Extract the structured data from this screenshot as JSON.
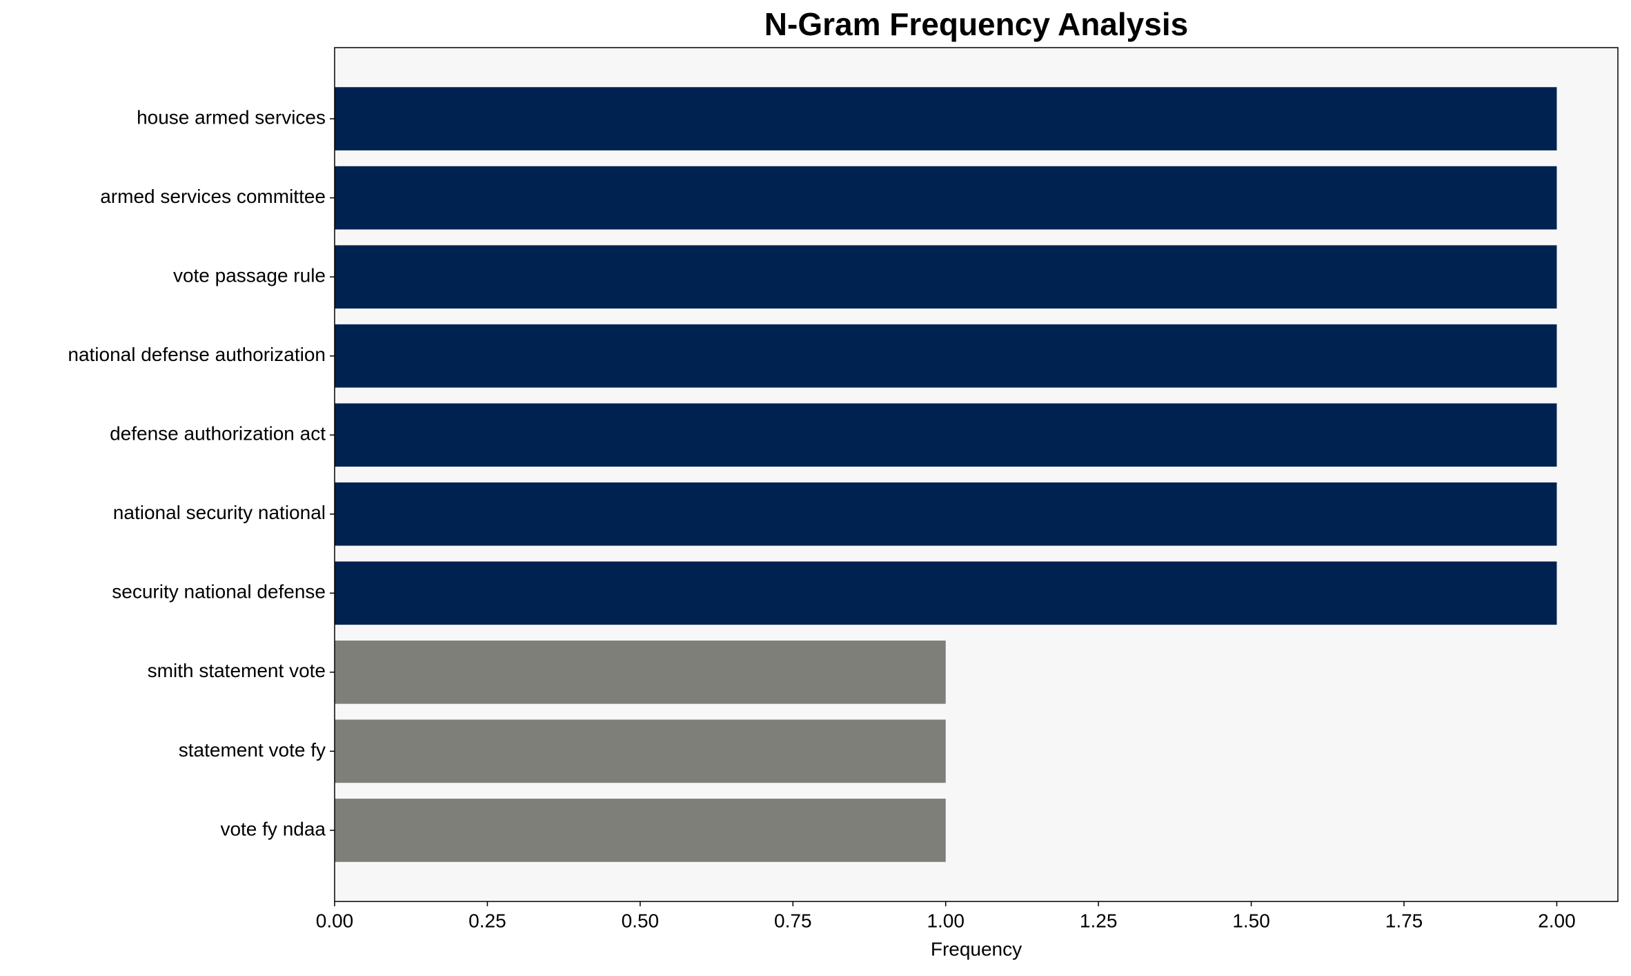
{
  "chart_data": {
    "type": "barh",
    "title": "N-Gram Frequency Analysis",
    "x_label": "Frequency",
    "categories": [
      "house armed services",
      "armed services committee",
      "vote passage rule",
      "national defense authorization",
      "defense authorization act",
      "national security national",
      "security national defense",
      "smith statement vote",
      "statement vote fy",
      "vote fy ndaa"
    ],
    "values": [
      2,
      2,
      2,
      2,
      2,
      2,
      2,
      1,
      1,
      1
    ],
    "colors": [
      "#002251",
      "#002251",
      "#002251",
      "#002251",
      "#002251",
      "#002251",
      "#002251",
      "#7f7f7a",
      "#7f7f7a",
      "#7f7f7a"
    ],
    "xlim": [
      0,
      2.1
    ],
    "xticks": [
      {
        "value": 0,
        "label": "0.00"
      },
      {
        "value": 0.25,
        "label": "0.25"
      },
      {
        "value": 0.5,
        "label": "0.50"
      },
      {
        "value": 0.75,
        "label": "0.75"
      },
      {
        "value": 1,
        "label": "1.00"
      },
      {
        "value": 1.25,
        "label": "1.25"
      },
      {
        "value": 1.5,
        "label": "1.50"
      },
      {
        "value": 1.75,
        "label": "1.75"
      },
      {
        "value": 2,
        "label": "2.00"
      }
    ],
    "plot_background": "#f7f7f7"
  }
}
